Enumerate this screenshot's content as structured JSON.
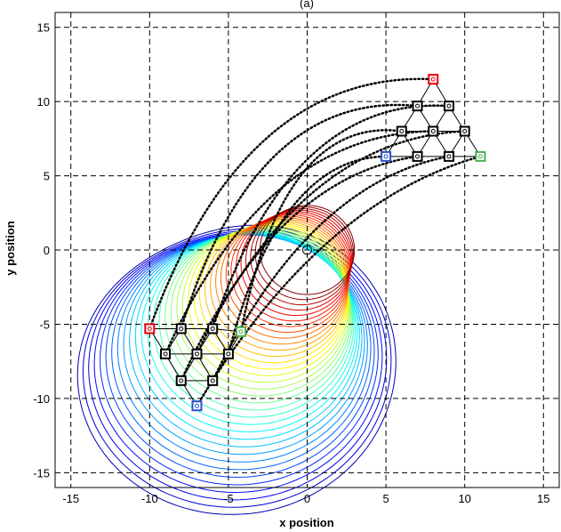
{
  "chart_data": {
    "type": "line",
    "title": "(a)",
    "xlabel": "x position",
    "ylabel": "y position",
    "xlim": [
      -16,
      16
    ],
    "ylim": [
      -16,
      16
    ],
    "xticks": [
      -15,
      -10,
      -5,
      0,
      5,
      10,
      15
    ],
    "yticks": [
      -15,
      -10,
      -5,
      0,
      5,
      10,
      15
    ],
    "grid": true,
    "grid_style": "dashed",
    "colormap": "jet",
    "contour_family": {
      "description_shown": "curved-spiral contour lines inside circle of radius 15",
      "outer_radius": 15,
      "count": 34
    },
    "origin_marker": [
      0,
      0
    ],
    "formation_start": {
      "nodes": [
        [
          -10,
          -5.3
        ],
        [
          -8,
          -5.3
        ],
        [
          -6,
          -5.3
        ],
        [
          -4.2,
          -5.5
        ],
        [
          -9,
          -7
        ],
        [
          -7,
          -7
        ],
        [
          -5,
          -7
        ],
        [
          -8,
          -8.8
        ],
        [
          -6,
          -8.8
        ],
        [
          -7,
          -10.5
        ]
      ],
      "highlight": {
        "red": 0,
        "green": 3,
        "blue": 9
      }
    },
    "formation_end": {
      "nodes": [
        [
          8,
          11.5
        ],
        [
          7,
          9.7
        ],
        [
          9,
          9.7
        ],
        [
          6,
          8
        ],
        [
          8,
          8
        ],
        [
          10,
          8
        ],
        [
          5,
          6.3
        ],
        [
          7,
          6.3
        ],
        [
          9,
          6.3
        ],
        [
          11,
          6.3
        ]
      ],
      "highlight": {
        "red": 0,
        "green": 9,
        "blue": 6
      }
    },
    "trajectories_style": "dotted black",
    "colors": {
      "red_marker": "#e8000b",
      "green_marker": "#4caf50",
      "blue_marker": "#2a50c8",
      "node_marker": "#000000",
      "grid": "#000000"
    }
  }
}
